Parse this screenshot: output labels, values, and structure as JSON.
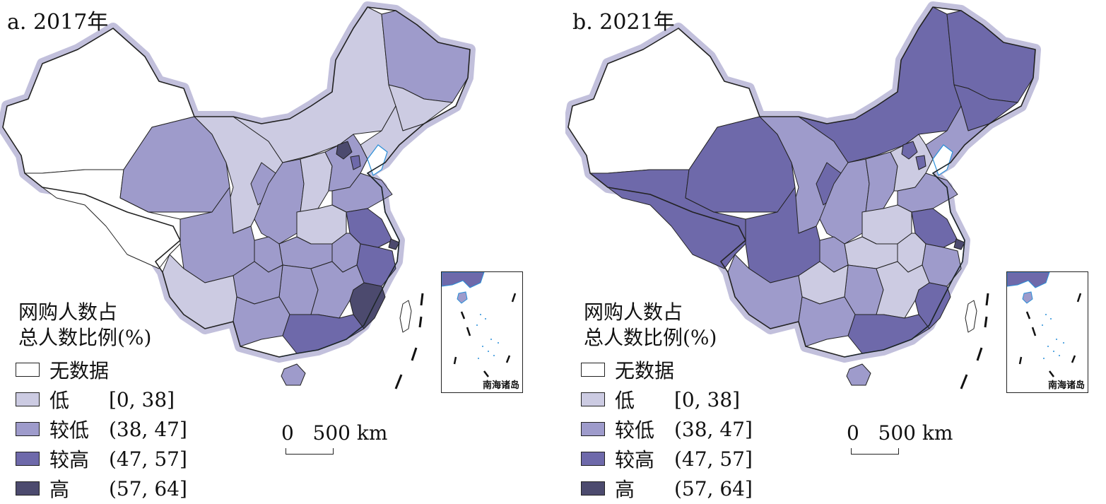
{
  "colors": {
    "none": "#ffffff",
    "low": "#cccbe2",
    "mid_low": "#9e9bcb",
    "mid_high": "#6e69aa",
    "high": "#4c4a6e",
    "halo": "#c2c0dc",
    "coast": "#2a8fd8",
    "border": "#222222"
  },
  "legend": {
    "title_line1": "网购人数占",
    "title_line2": "总人数比例(%)",
    "items": [
      {
        "key": "none",
        "label": "无数据",
        "range": ""
      },
      {
        "key": "low",
        "label": "低",
        "range": "[0, 38]"
      },
      {
        "key": "mid_low",
        "label": "较低",
        "range": "(38, 47]"
      },
      {
        "key": "mid_high",
        "label": "较高",
        "range": "(47, 57]"
      },
      {
        "key": "high",
        "label": "高",
        "range": "(57, 64]"
      }
    ]
  },
  "scale_bar": {
    "start": "0",
    "end": "500 km"
  },
  "inset_label": "南海诸岛",
  "panels": [
    {
      "title": "a. 2017年",
      "regions": {
        "heilongjiang": "mid_low",
        "jilin": "low",
        "liaoning": "low",
        "inner_mongolia": "low",
        "xinjiang": "none",
        "tibet": "none",
        "qinghai": "mid_low",
        "gansu": "low",
        "ningxia": "mid_low",
        "shaanxi": "mid_low",
        "shanxi": "low",
        "hebei": "mid_low",
        "beijing": "high",
        "tianjin": "mid_high",
        "shandong": "mid_low",
        "henan": "low",
        "anhui": "mid_low",
        "jiangsu": "mid_high",
        "shanghai": "high",
        "zhejiang": "mid_high",
        "fujian": "high",
        "hubei": "mid_low",
        "hunan": "mid_low",
        "jiangxi": "mid_low",
        "sichuan": "mid_low",
        "chongqing": "mid_low",
        "guizhou": "mid_low",
        "yunnan": "low",
        "guangxi": "mid_low",
        "guangdong": "mid_high",
        "hainan": "mid_low",
        "taiwan": "none"
      }
    },
    {
      "title": "b. 2021年",
      "regions": {
        "heilongjiang": "mid_high",
        "jilin": "mid_high",
        "liaoning": "mid_low",
        "inner_mongolia": "mid_high",
        "xinjiang": "none",
        "tibet": "mid_high",
        "qinghai": "mid_high",
        "gansu": "mid_low",
        "ningxia": "mid_high",
        "shaanxi": "mid_low",
        "shanxi": "mid_low",
        "hebei": "low",
        "beijing": "mid_high",
        "tianjin": "mid_high",
        "shandong": "mid_low",
        "henan": "low",
        "anhui": "low",
        "jiangsu": "mid_high",
        "shanghai": "high",
        "zhejiang": "mid_low",
        "fujian": "mid_high",
        "hubei": "low",
        "hunan": "mid_low",
        "jiangxi": "low",
        "sichuan": "mid_high",
        "chongqing": "mid_low",
        "guizhou": "low",
        "yunnan": "mid_low",
        "guangxi": "mid_low",
        "guangdong": "mid_high",
        "hainan": "mid_low",
        "taiwan": "none"
      }
    }
  ]
}
